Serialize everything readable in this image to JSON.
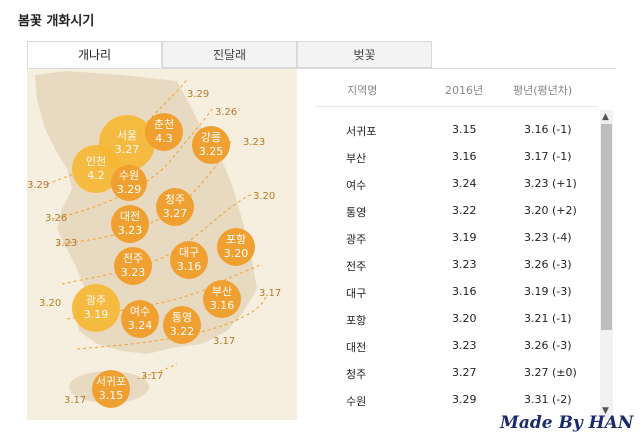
{
  "title": "봄꽃 개화시기",
  "tabs": [
    {
      "label": "개나리",
      "active": true
    },
    {
      "label": "진달래",
      "active": false
    },
    {
      "label": "벚꽃",
      "active": false
    }
  ],
  "map": {
    "bubbles": [
      {
        "name": "서울",
        "date": "3.27"
      },
      {
        "name": "춘천",
        "date": "4.3"
      },
      {
        "name": "강릉",
        "date": "3.25"
      },
      {
        "name": "인천",
        "date": "4.2"
      },
      {
        "name": "수원",
        "date": "3.29"
      },
      {
        "name": "청주",
        "date": "3.27"
      },
      {
        "name": "대전",
        "date": "3.23"
      },
      {
        "name": "포항",
        "date": "3.20"
      },
      {
        "name": "대구",
        "date": "3.16"
      },
      {
        "name": "전주",
        "date": "3.23"
      },
      {
        "name": "부산",
        "date": "3.16"
      },
      {
        "name": "광주",
        "date": "3.19"
      },
      {
        "name": "여수",
        "date": "3.24"
      },
      {
        "name": "통영",
        "date": "3.22"
      },
      {
        "name": "서귀포",
        "date": "3.15"
      }
    ],
    "isoline_labels": [
      "3.29",
      "3.26",
      "3.23",
      "3.29",
      "3.26",
      "3.23",
      "3.20",
      "3.20",
      "3.17",
      "3.17",
      "3.17",
      "3.17"
    ],
    "colors": {
      "bubble": "#f0a030",
      "bubble_highlight": "#f7b733",
      "land": "#e8dac0",
      "background": "#f6efe0",
      "isoline": "#f0a030"
    }
  },
  "table": {
    "headers": [
      "지역명",
      "2016년",
      "평년(평년차)"
    ],
    "rows": [
      {
        "region": "서귀포",
        "y2016": "3.15",
        "normal": "3.16 (-1)"
      },
      {
        "region": "부산",
        "y2016": "3.16",
        "normal": "3.17 (-1)"
      },
      {
        "region": "여수",
        "y2016": "3.24",
        "normal": "3.23 (+1)"
      },
      {
        "region": "통영",
        "y2016": "3.22",
        "normal": "3.20 (+2)"
      },
      {
        "region": "광주",
        "y2016": "3.19",
        "normal": "3.23 (-4)"
      },
      {
        "region": "전주",
        "y2016": "3.23",
        "normal": "3.26 (-3)"
      },
      {
        "region": "대구",
        "y2016": "3.16",
        "normal": "3.19 (-3)"
      },
      {
        "region": "포항",
        "y2016": "3.20",
        "normal": "3.21 (-1)"
      },
      {
        "region": "대전",
        "y2016": "3.23",
        "normal": "3.26 (-3)"
      },
      {
        "region": "청주",
        "y2016": "3.27",
        "normal": "3.27 (±0)"
      },
      {
        "region": "수원",
        "y2016": "3.29",
        "normal": "3.31 (-2)"
      }
    ]
  },
  "scrollbar": {
    "up_icon": "▲",
    "down_icon": "▼"
  },
  "watermark": "Made By HAN"
}
